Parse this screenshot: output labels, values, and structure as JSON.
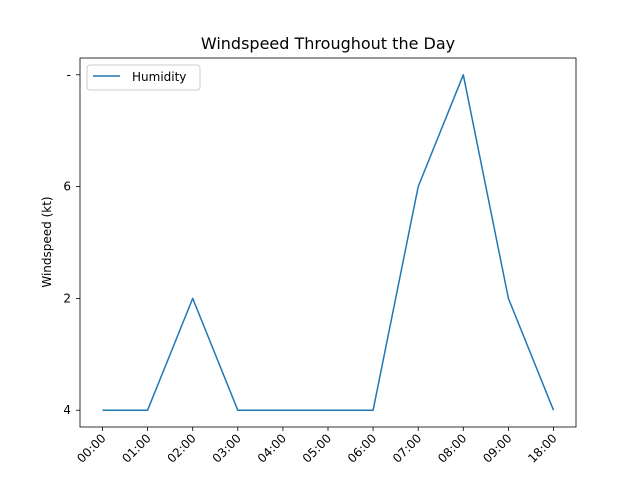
{
  "chart_data": {
    "type": "line",
    "title": "Windspeed Throughout the Day",
    "xlabel": "",
    "ylabel": "Windspeed (kt)",
    "categories": [
      "00:00",
      "01:00",
      "02:00",
      "03:00",
      "04:00",
      "05:00",
      "06:00",
      "07:00",
      "08:00",
      "09:00",
      "18:00"
    ],
    "y_ticks": [
      "4",
      "2",
      "6",
      "-"
    ],
    "y_tick_positions": [
      0,
      1,
      2,
      3
    ],
    "ylim": [
      -0.15,
      3.15
    ],
    "series": [
      {
        "name": "Humidity",
        "color": "#1f77b4",
        "values": [
          0,
          0,
          1,
          0,
          0,
          0,
          0,
          2,
          3,
          1,
          0
        ]
      }
    ],
    "legend_position": "upper-left",
    "grid": false
  }
}
